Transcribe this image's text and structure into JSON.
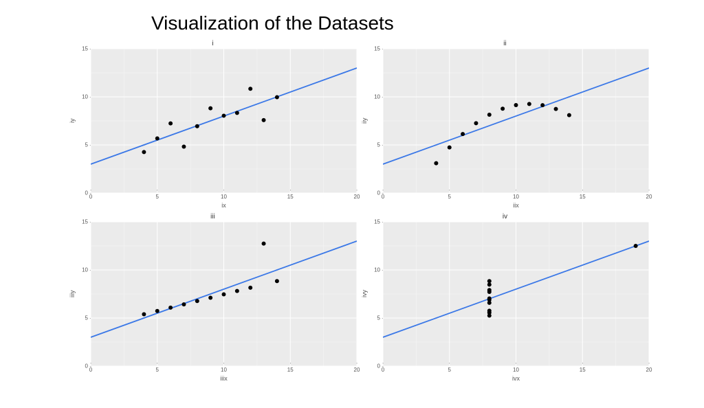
{
  "title": "Visualization of the Datasets",
  "title_fontsize": 28,
  "background_color": "#ffffff",
  "chart_background": "#ebebeb",
  "grid_major_color": "#ffffff",
  "grid_minor_color": "#f5f5f5",
  "point_color": "#000000",
  "point_radius": 3,
  "line_color": "#3b78e7",
  "line_width": 1.8,
  "regression": {
    "slope": 0.5,
    "intercept": 3.0
  },
  "xlim": [
    0,
    20
  ],
  "ylim": [
    0,
    15
  ],
  "x_ticks": [
    0,
    5,
    10,
    15,
    20
  ],
  "y_ticks": [
    0,
    5,
    10,
    15
  ],
  "axis_fontsize": 9,
  "tick_fontsize": 8,
  "panels": [
    {
      "title": "i",
      "x_label": "ix",
      "y_label": "iy",
      "points": [
        {
          "x": 10,
          "y": 8.04
        },
        {
          "x": 8,
          "y": 6.95
        },
        {
          "x": 13,
          "y": 7.58
        },
        {
          "x": 9,
          "y": 8.81
        },
        {
          "x": 11,
          "y": 8.33
        },
        {
          "x": 14,
          "y": 9.96
        },
        {
          "x": 6,
          "y": 7.24
        },
        {
          "x": 4,
          "y": 4.26
        },
        {
          "x": 12,
          "y": 10.84
        },
        {
          "x": 7,
          "y": 4.82
        },
        {
          "x": 5,
          "y": 5.68
        }
      ]
    },
    {
      "title": "ii",
      "x_label": "iix",
      "y_label": "iiy",
      "points": [
        {
          "x": 10,
          "y": 9.14
        },
        {
          "x": 8,
          "y": 8.14
        },
        {
          "x": 13,
          "y": 8.74
        },
        {
          "x": 9,
          "y": 8.77
        },
        {
          "x": 11,
          "y": 9.26
        },
        {
          "x": 14,
          "y": 8.1
        },
        {
          "x": 6,
          "y": 6.13
        },
        {
          "x": 4,
          "y": 3.1
        },
        {
          "x": 12,
          "y": 9.13
        },
        {
          "x": 7,
          "y": 7.26
        },
        {
          "x": 5,
          "y": 4.74
        }
      ]
    },
    {
      "title": "iii",
      "x_label": "iiix",
      "y_label": "iiiy",
      "points": [
        {
          "x": 10,
          "y": 7.46
        },
        {
          "x": 8,
          "y": 6.77
        },
        {
          "x": 13,
          "y": 12.74
        },
        {
          "x": 9,
          "y": 7.11
        },
        {
          "x": 11,
          "y": 7.81
        },
        {
          "x": 14,
          "y": 8.84
        },
        {
          "x": 6,
          "y": 6.08
        },
        {
          "x": 4,
          "y": 5.39
        },
        {
          "x": 12,
          "y": 8.15
        },
        {
          "x": 7,
          "y": 6.42
        },
        {
          "x": 5,
          "y": 5.73
        }
      ]
    },
    {
      "title": "iv",
      "x_label": "ivx",
      "y_label": "ivy",
      "points": [
        {
          "x": 8,
          "y": 6.58
        },
        {
          "x": 8,
          "y": 5.76
        },
        {
          "x": 8,
          "y": 7.71
        },
        {
          "x": 8,
          "y": 8.84
        },
        {
          "x": 8,
          "y": 8.47
        },
        {
          "x": 8,
          "y": 7.04
        },
        {
          "x": 8,
          "y": 5.25
        },
        {
          "x": 19,
          "y": 12.5
        },
        {
          "x": 8,
          "y": 5.56
        },
        {
          "x": 8,
          "y": 7.91
        },
        {
          "x": 8,
          "y": 6.89
        }
      ]
    }
  ]
}
